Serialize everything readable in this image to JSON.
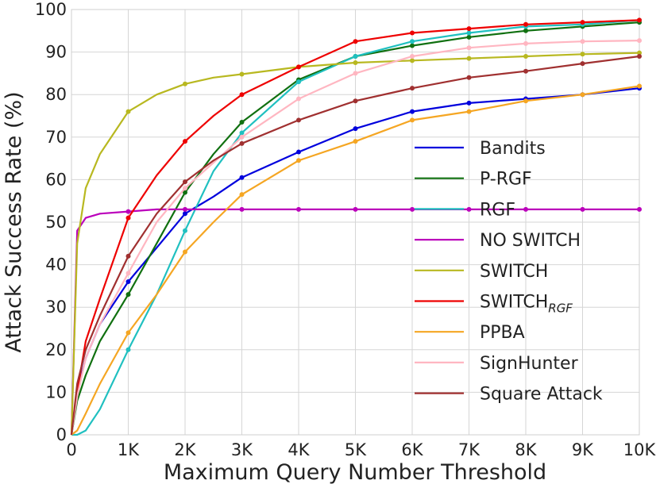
{
  "chart_data": {
    "type": "line",
    "title": "",
    "xlabel": "Maximum Query Number Threshold",
    "ylabel": "Attack Success Rate (%)",
    "xlim": [
      0,
      10000
    ],
    "ylim": [
      0,
      100
    ],
    "x_ticks": [
      0,
      1000,
      2000,
      3000,
      4000,
      5000,
      6000,
      7000,
      8000,
      9000,
      10000
    ],
    "x_tick_labels": [
      "0",
      "1K",
      "2K",
      "3K",
      "4K",
      "5K",
      "6K",
      "7K",
      "8K",
      "9K",
      "10K"
    ],
    "y_ticks": [
      0,
      10,
      20,
      30,
      40,
      50,
      60,
      70,
      80,
      90,
      100
    ],
    "y_tick_labels": [
      "0",
      "10",
      "20",
      "30",
      "40",
      "50",
      "60",
      "70",
      "80",
      "90",
      "100"
    ],
    "grid": true,
    "legend": "center-right",
    "x": [
      0,
      100,
      250,
      500,
      1000,
      1500,
      2000,
      2500,
      3000,
      4000,
      5000,
      6000,
      7000,
      8000,
      9000,
      10000
    ],
    "series": [
      {
        "name": "Bandits",
        "name_main": "Bandits",
        "name_sub": "",
        "color": "#0000dd",
        "values": [
          0,
          10,
          18,
          26,
          36,
          44,
          52,
          56,
          60.5,
          66.5,
          72,
          76,
          78,
          79,
          80,
          81.5
        ]
      },
      {
        "name": "P-RGF",
        "name_main": "P-RGF",
        "name_sub": "",
        "color": "#107010",
        "values": [
          0,
          8,
          14,
          22,
          33,
          45,
          57,
          66,
          73.5,
          83.5,
          89,
          91.5,
          93.5,
          95,
          96,
          97
        ]
      },
      {
        "name": "RGF",
        "name_main": "RGF",
        "name_sub": "",
        "color": "#20c0c0",
        "values": [
          0,
          0,
          1,
          6,
          20,
          33,
          48,
          62,
          71,
          83,
          89,
          92.5,
          94.5,
          96,
          96.5,
          97.5
        ]
      },
      {
        "name": "NO SWITCH",
        "name_main": "NO SWITCH",
        "name_sub": "",
        "color": "#bb00bb",
        "values": [
          0,
          48,
          51,
          52,
          52.5,
          53,
          53,
          53,
          53,
          53,
          53,
          53,
          53,
          53,
          53,
          53
        ]
      },
      {
        "name": "SWITCH",
        "name_main": "SWITCH",
        "name_sub": "",
        "color": "#b8b820",
        "values": [
          0,
          45,
          58,
          66,
          76,
          80,
          82.5,
          84,
          84.8,
          86.5,
          87.5,
          88,
          88.5,
          89,
          89.5,
          89.8
        ]
      },
      {
        "name": "SWITCH_RGF",
        "name_main": "SWITCH",
        "name_sub": "RGF",
        "color": "#ee0000",
        "values": [
          0,
          10,
          22,
          32,
          51,
          61,
          69,
          75,
          80,
          86.5,
          92.5,
          94.5,
          95.5,
          96.5,
          97,
          97.5
        ]
      },
      {
        "name": "PPBA",
        "name_main": "PPBA",
        "name_sub": "",
        "color": "#f5a623",
        "values": [
          0,
          1,
          5,
          12,
          24,
          33,
          43,
          50,
          56.5,
          64.5,
          69,
          74,
          76,
          78.5,
          80,
          82
        ]
      },
      {
        "name": "SignHunter",
        "name_main": "SignHunter",
        "name_sub": "",
        "color": "#ffb6c1",
        "values": [
          0,
          9,
          18,
          26,
          38,
          50,
          58,
          64,
          70,
          79,
          85,
          89,
          91,
          92,
          92.5,
          92.7
        ]
      },
      {
        "name": "Square Attack",
        "name_main": "Square Attack",
        "name_sub": "",
        "color": "#a03030",
        "values": [
          0,
          12,
          20,
          28,
          42,
          52,
          59.5,
          64.5,
          68.5,
          74,
          78.5,
          81.5,
          84,
          85.5,
          87.3,
          89
        ]
      }
    ]
  }
}
